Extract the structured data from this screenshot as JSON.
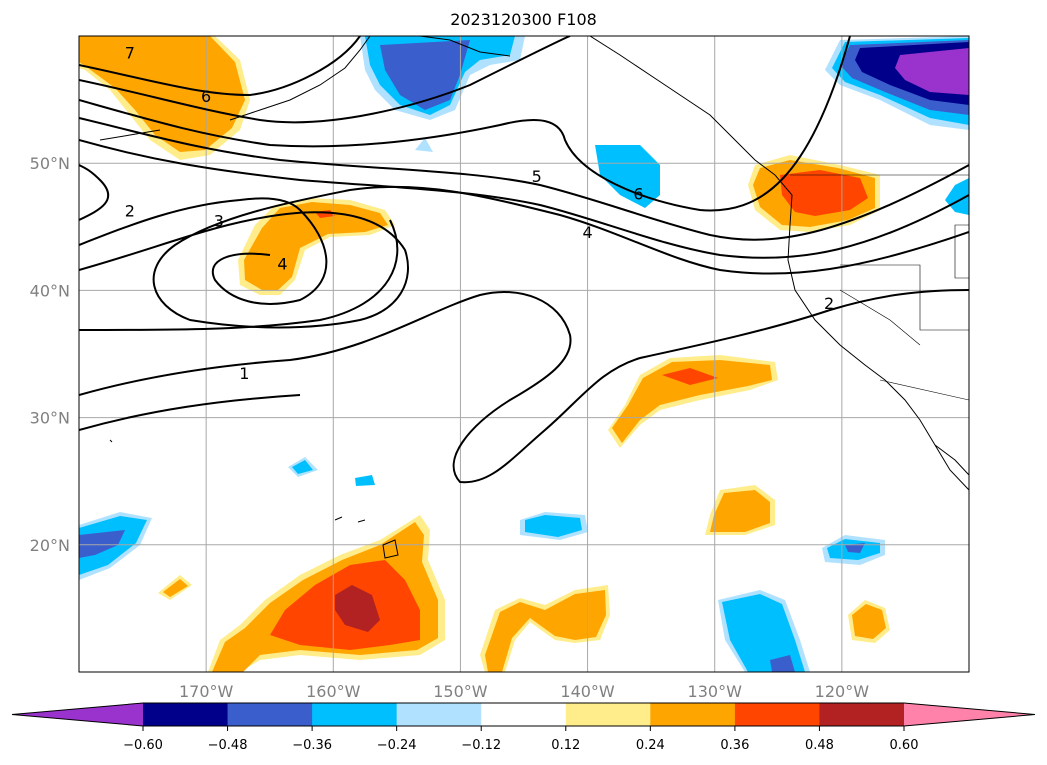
{
  "title": "2023120300 F108",
  "map": {
    "lon_range": [
      -180,
      -110
    ],
    "lat_range": [
      10,
      60
    ],
    "grid": true,
    "lat_ticks": [
      {
        "value": 50,
        "label": "50°N"
      },
      {
        "value": 40,
        "label": "40°N"
      },
      {
        "value": 30,
        "label": "30°N"
      },
      {
        "value": 20,
        "label": "20°N"
      }
    ],
    "lon_ticks": [
      {
        "value": -170,
        "label": "170°W"
      },
      {
        "value": -160,
        "label": "160°W"
      },
      {
        "value": -150,
        "label": "150°W"
      },
      {
        "value": -140,
        "label": "140°W"
      },
      {
        "value": -130,
        "label": "130°W"
      },
      {
        "value": -120,
        "label": "120°W"
      }
    ],
    "contour_labels": [
      {
        "text": "7",
        "lon": -176,
        "lat": 58.7
      },
      {
        "text": "6",
        "lon": -170,
        "lat": 55.3
      },
      {
        "text": "2",
        "lon": -176,
        "lat": 46.3
      },
      {
        "text": "3",
        "lon": -169,
        "lat": 45.5
      },
      {
        "text": "4",
        "lon": -164,
        "lat": 42.1
      },
      {
        "text": "5",
        "lon": -144,
        "lat": 49.0
      },
      {
        "text": "6",
        "lon": -136,
        "lat": 47.6
      },
      {
        "text": "4",
        "lon": -140,
        "lat": 44.6
      },
      {
        "text": "2",
        "lon": -121,
        "lat": 39.0
      },
      {
        "text": "1",
        "lon": -167,
        "lat": 33.5
      }
    ]
  },
  "colorbar": {
    "colors": [
      "#9a32cd",
      "#00008b",
      "#3a5fcd",
      "#00bfff",
      "#b0e2ff",
      "#ffffff",
      "#ffec8b",
      "#ffa500",
      "#ff4500",
      "#b22222",
      "#ff82ab"
    ],
    "tick_values": [
      -0.6,
      -0.48,
      -0.36,
      -0.24,
      -0.12,
      0.12,
      0.24,
      0.36,
      0.48,
      0.6
    ],
    "tick_labels": [
      "−0.60",
      "−0.48",
      "−0.36",
      "−0.24",
      "−0.12",
      "0.12",
      "0.24",
      "0.36",
      "0.48",
      "0.60"
    ]
  }
}
